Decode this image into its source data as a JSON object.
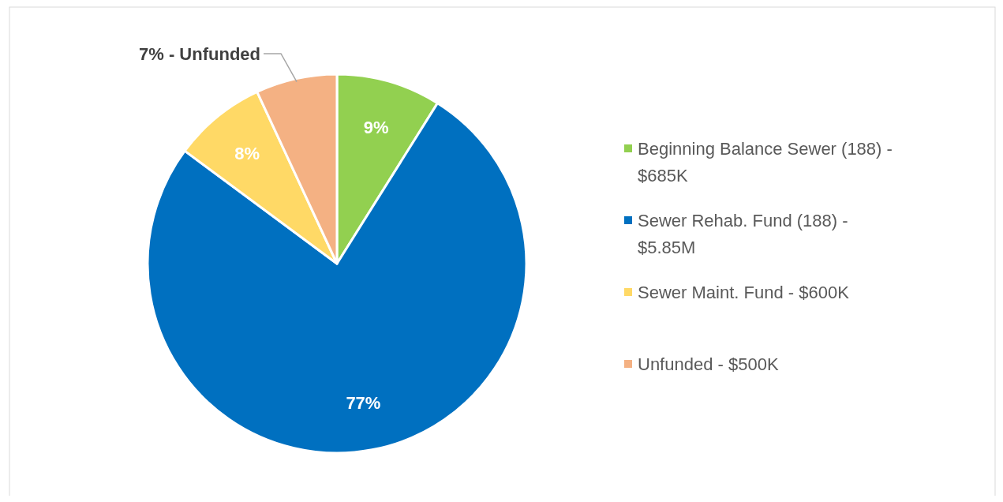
{
  "chart_data": {
    "type": "pie",
    "categories": [
      "Beginning Balance Sewer (188) - $685K",
      "Sewer Rehab. Fund (188) - $5.85M",
      "Sewer Maint. Fund - $600K",
      "Unfunded - $500K"
    ],
    "values": [
      9,
      77,
      8,
      7
    ],
    "colors": [
      "#92d050",
      "#0070c0",
      "#ffd966",
      "#f4b183"
    ],
    "value_labels": [
      "9%",
      "77%",
      "8%",
      "7% - Unfunded"
    ],
    "legend": "right"
  }
}
